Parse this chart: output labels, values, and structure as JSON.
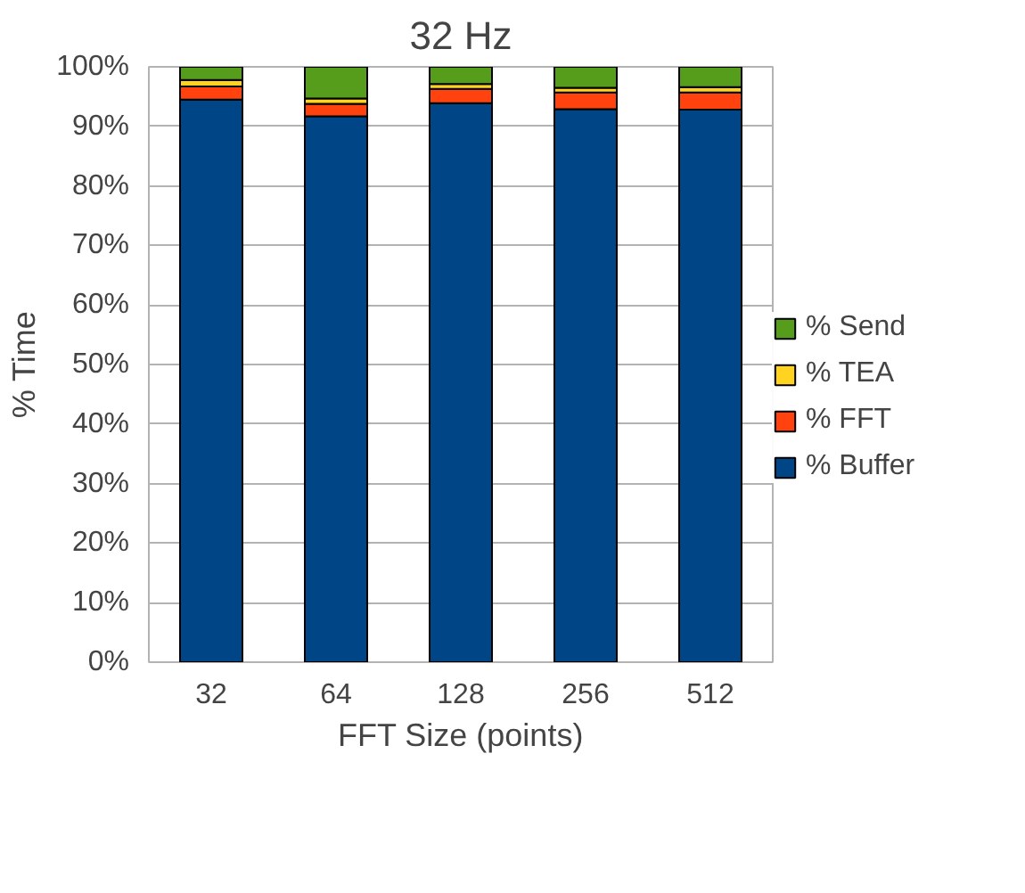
{
  "chart_data": {
    "type": "bar",
    "title": "32 Hz",
    "xlabel": "FFT Size (points)",
    "ylabel": "% Time",
    "stacked": true,
    "categories": [
      "32",
      "64",
      "128",
      "256",
      "512"
    ],
    "series": [
      {
        "name": "% Buffer",
        "color": "#004586",
        "values": [
          94.5,
          91.7,
          93.9,
          92.9,
          92.8
        ]
      },
      {
        "name": "% FFT",
        "color": "#ff420e",
        "values": [
          2.2,
          2.1,
          2.4,
          2.8,
          2.9
        ]
      },
      {
        "name": "% TEA",
        "color": "#ffd320",
        "values": [
          1.1,
          0.9,
          0.8,
          0.8,
          0.9
        ]
      },
      {
        "name": "% Send",
        "color": "#579d1c",
        "values": [
          2.2,
          5.3,
          2.9,
          3.5,
          3.4
        ]
      }
    ],
    "ylim": [
      0,
      100
    ],
    "yticks": [
      {
        "value": 0,
        "label": "0%"
      },
      {
        "value": 10,
        "label": "10%"
      },
      {
        "value": 20,
        "label": "20%"
      },
      {
        "value": 30,
        "label": "30%"
      },
      {
        "value": 40,
        "label": "40%"
      },
      {
        "value": 50,
        "label": "50%"
      },
      {
        "value": 60,
        "label": "60%"
      },
      {
        "value": 70,
        "label": "70%"
      },
      {
        "value": 80,
        "label": "80%"
      },
      {
        "value": 90,
        "label": "90%"
      },
      {
        "value": 100,
        "label": "100%"
      }
    ],
    "grid": "y",
    "legend": "right"
  }
}
